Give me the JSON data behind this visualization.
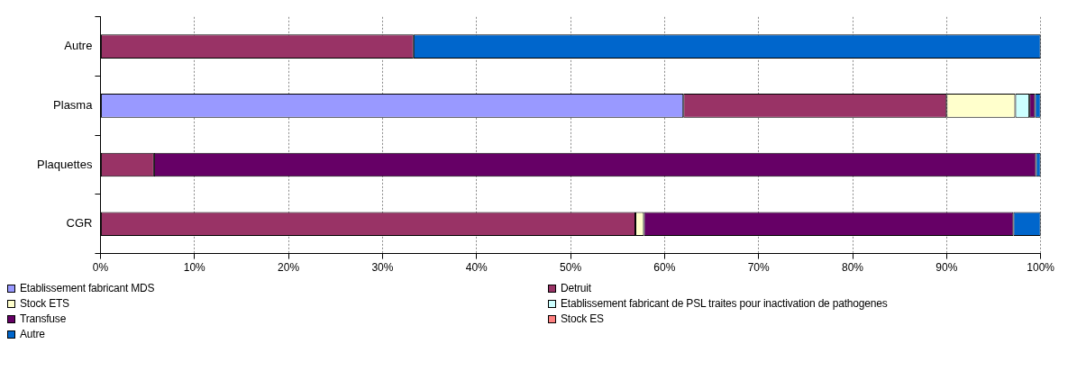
{
  "chart_data": {
    "type": "bar",
    "orientation": "horizontal",
    "stacked": true,
    "categories": [
      "Autre",
      "Plasma",
      "Plaquettes",
      "CGR"
    ],
    "series": [
      {
        "name": "Etablissement fabricant MDS",
        "color": "#9999ff",
        "values": [
          null,
          62,
          null,
          null
        ]
      },
      {
        "name": "Detruit",
        "color": "#993366",
        "values": [
          33.3,
          28,
          5.7,
          56.9
        ]
      },
      {
        "name": "Stock ETS",
        "color": "#ffffcc",
        "values": [
          null,
          7.3,
          null,
          0.9
        ]
      },
      {
        "name": "Etablissement fabricant de PSL traites pour inactivation de pathogenes",
        "color": "#ccffff",
        "values": [
          null,
          1.5,
          null,
          null
        ]
      },
      {
        "name": "Transfuse",
        "color": "#660066",
        "values": [
          null,
          0.6,
          93.8,
          39.3
        ]
      },
      {
        "name": "Stock ES",
        "color": "#ff8080",
        "values": [
          null,
          null,
          null,
          null
        ]
      },
      {
        "name": "Autre",
        "color": "#0066cc",
        "values": [
          66.7,
          0.6,
          0.5,
          2.9
        ]
      }
    ],
    "xlim": [
      0,
      100
    ],
    "xticks": [
      {
        "value": 0,
        "label": "0%"
      },
      {
        "value": 10,
        "label": "10%"
      },
      {
        "value": 20,
        "label": "20%"
      },
      {
        "value": 30,
        "label": "30%"
      },
      {
        "value": 40,
        "label": "40%"
      },
      {
        "value": 50,
        "label": "50%"
      },
      {
        "value": 60,
        "label": "60%"
      },
      {
        "value": 70,
        "label": "70%"
      },
      {
        "value": 80,
        "label": "80%"
      },
      {
        "value": 90,
        "label": "90%"
      },
      {
        "value": 100,
        "label": "100%"
      }
    ],
    "grid": "x",
    "legend": "bottom"
  }
}
